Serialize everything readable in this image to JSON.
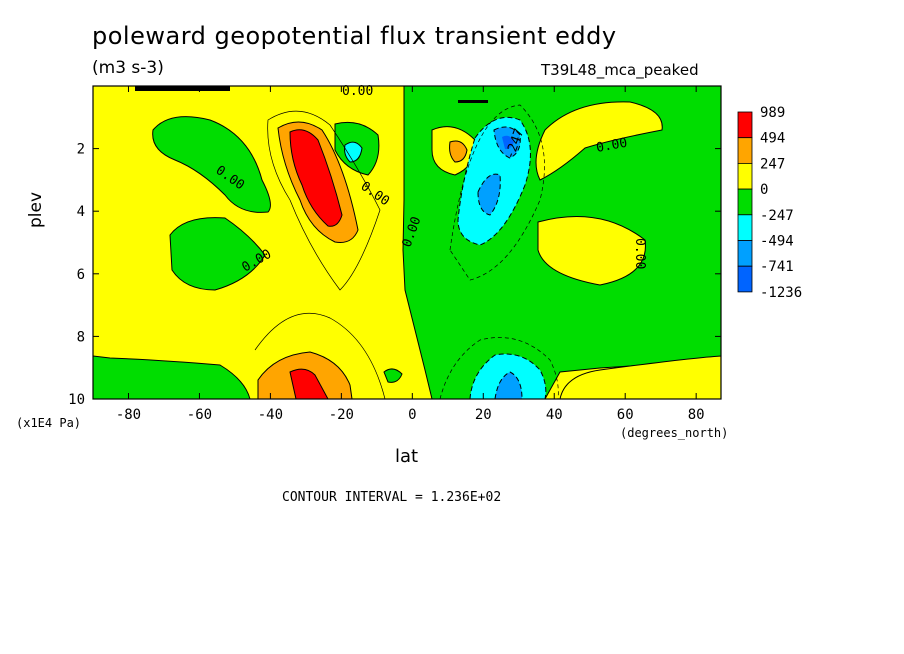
{
  "chart_data": {
    "type": "heatmap",
    "subtype": "filled contour plot",
    "title": "poleward geopotential flux transient eddy",
    "units": "(m3 s-3)",
    "run_label": "T39L48_mca_peaked",
    "xlabel": "lat",
    "x_units": "(degrees_north)",
    "ylabel": "plev",
    "y_units": "(x1E4 Pa)",
    "xlim": [
      -90,
      87
    ],
    "ylim": [
      10,
      0
    ],
    "y_inverted": true,
    "x_ticks": [
      -80,
      -60,
      -40,
      -20,
      0,
      20,
      40,
      60,
      80
    ],
    "y_ticks": [
      2,
      4,
      6,
      8,
      10
    ],
    "contour_interval_text": "CONTOUR INTERVAL = 1.236E+02",
    "contour_labels": [
      "0.00",
      "0.00",
      "0.00",
      "0.00",
      "0.00",
      "0.00",
      "0.00",
      "-247"
    ],
    "colorbar": {
      "labels": [
        "989",
        "494",
        "247",
        "0",
        "-247",
        "-494",
        "-741",
        "-1236"
      ],
      "colors": [
        "#ff0000",
        "#ffa500",
        "#ffff00",
        "#00dd00",
        "#00ffff",
        "#00a0ff",
        "#0064ff"
      ]
    },
    "features": [
      {
        "sign": "positive",
        "lat": -27,
        "plev": 2.5,
        "peak_level": "989"
      },
      {
        "sign": "positive",
        "lat": -28,
        "plev": 9.6,
        "peak_level": "989"
      },
      {
        "sign": "positive",
        "lat": 15,
        "plev": 2.2,
        "peak_level": "247"
      },
      {
        "sign": "negative",
        "lat": 27,
        "plev": 2.0,
        "peak_level": "-741"
      },
      {
        "sign": "negative",
        "lat": 23,
        "plev": 4.0,
        "peak_level": "-494"
      },
      {
        "sign": "negative",
        "lat": 28,
        "plev": 9.6,
        "peak_level": "-741"
      },
      {
        "sign": "negative",
        "lat": -14,
        "plev": 2.2,
        "peak_level": "-247"
      }
    ]
  }
}
